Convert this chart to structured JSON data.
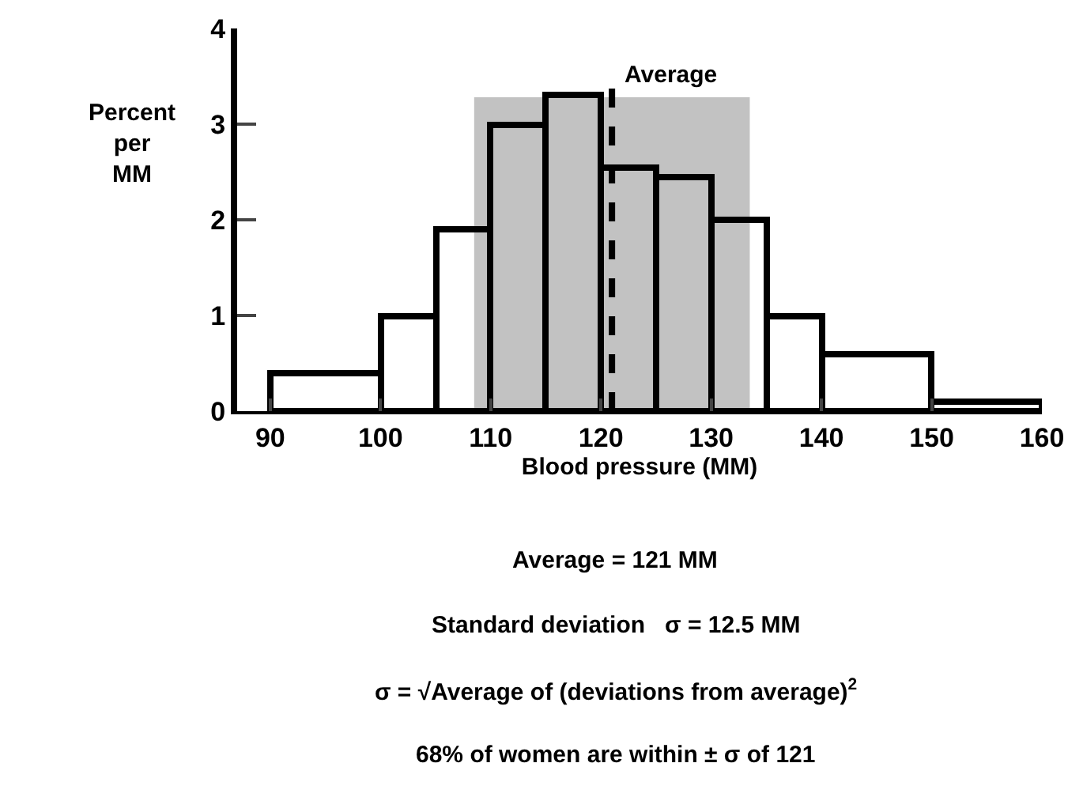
{
  "chart_data": {
    "type": "histogram",
    "xlabel": "Blood pressure (MM)",
    "ylabel": "Percent\nper\nMM",
    "bins": [
      90,
      100,
      105,
      110,
      115,
      120,
      125,
      130,
      135,
      140,
      150,
      160
    ],
    "values": [
      0.4,
      1.0,
      1.9,
      3.0,
      3.3,
      2.55,
      2.45,
      2.0,
      1.0,
      0.6,
      0.1
    ],
    "color": "#000000",
    "xlim": [
      87,
      160
    ],
    "xticks": [
      90,
      100,
      110,
      120,
      130,
      140,
      150,
      160
    ],
    "ylim": [
      0,
      4
    ],
    "yticks": [
      0,
      1,
      2,
      3,
      4
    ],
    "grid": false,
    "bands": [
      {
        "axis": "x",
        "from": 108.5,
        "to": 133.5,
        "color": "#9a9a9a"
      }
    ],
    "ref_lines": [
      {
        "axis": "x",
        "value": 121,
        "label": "Average",
        "line_style": "dashed",
        "color": "#000000"
      }
    ],
    "annotations": [
      "Average = 121 MM",
      "Standard deviation   σ = 12.5 MM",
      "σ = √Average of (deviations from average)$^{2}$",
      "68% of women are within ± σ of 121"
    ]
  }
}
